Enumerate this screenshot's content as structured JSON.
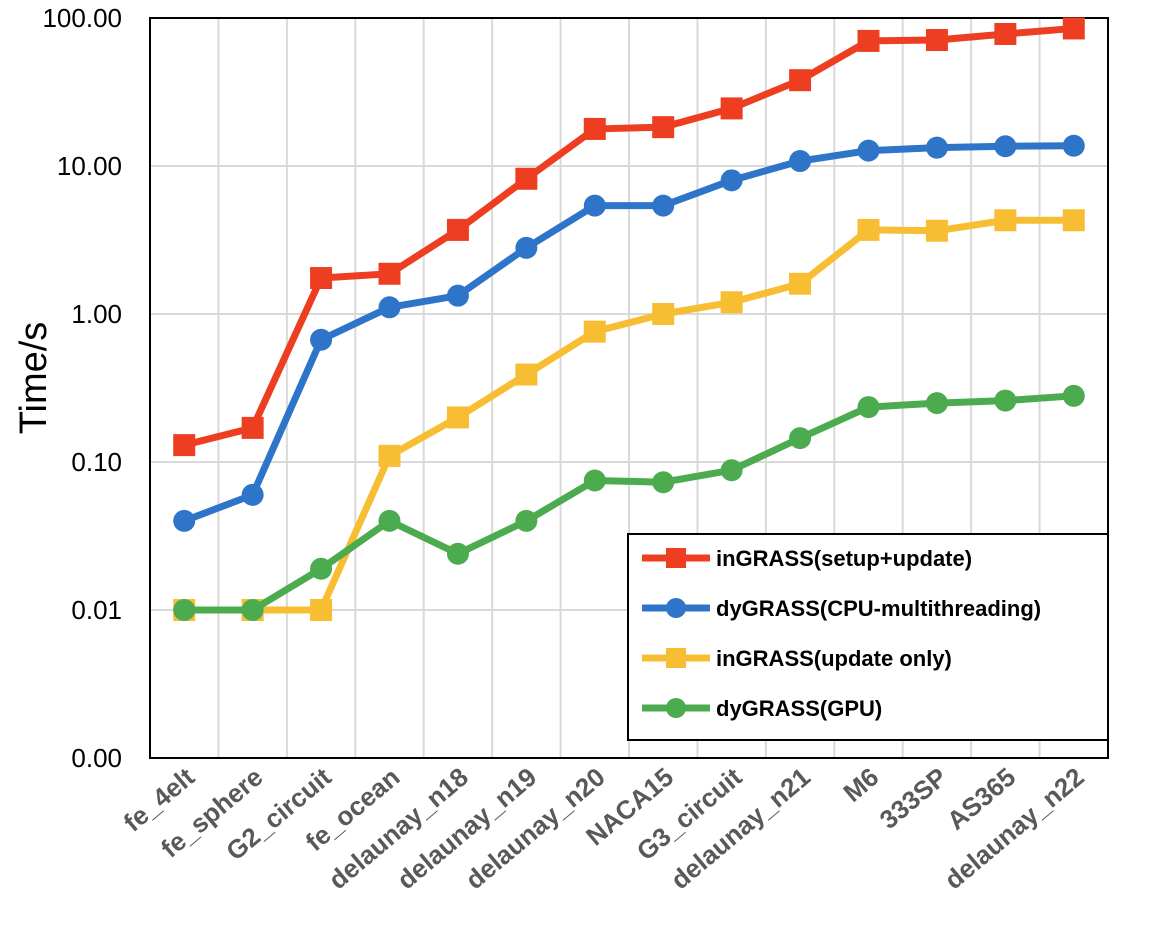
{
  "chart_data": {
    "type": "line",
    "title": "",
    "xlabel": "",
    "ylabel": "Time/s",
    "yscale": "log",
    "ylim": [
      0.001,
      100
    ],
    "y_tick_values": [
      0.001,
      0.01,
      0.1,
      1,
      10,
      100
    ],
    "y_tick_labels": [
      "0.00",
      "0.01",
      "0.10",
      "1.00",
      "10.00",
      "100.00"
    ],
    "grid": true,
    "legend_position": "bottom-right",
    "categories": [
      "fe_4elt",
      "fe_sphere",
      "G2_circuit",
      "fe_ocean",
      "delaunay_n18",
      "delaunay_n19",
      "delaunay_n20",
      "NACA15",
      "G3_circuit",
      "delaunay_n21",
      "M6",
      "333SP",
      "AS365",
      "delaunay_n22"
    ],
    "series": [
      {
        "name": "inGRASS(setup+update)",
        "color": "#ee3e22",
        "marker": "square",
        "values": [
          0.13,
          0.17,
          1.75,
          1.87,
          3.7,
          8.2,
          17.8,
          18.3,
          24.5,
          38,
          70,
          71,
          78,
          85
        ]
      },
      {
        "name": "dyGRASS(CPU-multithreading)",
        "color": "#2e75c9",
        "marker": "circle",
        "values": [
          0.04,
          0.06,
          0.67,
          1.11,
          1.33,
          2.8,
          5.4,
          5.4,
          8.0,
          10.8,
          12.7,
          13.3,
          13.6,
          13.7
        ]
      },
      {
        "name": "inGRASS(update only)",
        "color": "#f8be33",
        "marker": "square",
        "values": [
          0.01,
          0.01,
          0.01,
          0.11,
          0.2,
          0.39,
          0.76,
          1.0,
          1.2,
          1.6,
          3.7,
          3.65,
          4.3,
          4.3
        ]
      },
      {
        "name": "dyGRASS(GPU)",
        "color": "#4cab4f",
        "marker": "circle",
        "values": [
          0.01,
          0.01,
          0.019,
          0.04,
          0.024,
          0.04,
          0.075,
          0.073,
          0.088,
          0.145,
          0.235,
          0.25,
          0.26,
          0.28
        ]
      }
    ]
  }
}
